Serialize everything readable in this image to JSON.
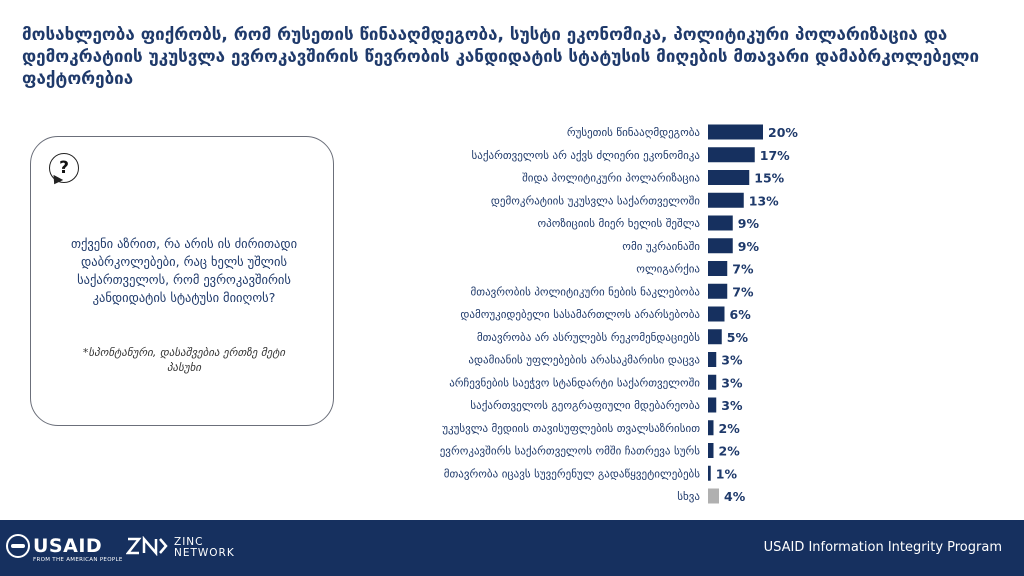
{
  "title": "მოსახლეობა ფიქრობს, რომ რუსეთის წინააღმდეგობა, სუსტი ეკონომიკა, პოლიტიკური პოლარიზაცია და დემოკრატიის უკუსვლა ევროკავშირის წევრობის კანდიდატის სტატუსის მიღების მთავარი დამაბრკოლებელი ფაქტორებია",
  "question_card": {
    "question": "თქვენი აზრით, რა არის ის ძირითადი დაბრკოლებები, რაც ხელს უშლის საქართველოს, რომ ევროკავშირის კანდიდატის სტატუსი მიიღოს?",
    "note": "*სპონტანური, დასაშვებია ერთზე მეტი პასუხი",
    "icon": "question-bubble-icon"
  },
  "chart_data": {
    "type": "bar",
    "orientation": "horizontal",
    "categories": [
      "რუსეთის წინააღმდეგობა",
      "საქართველოს არ აქვს ძლიერი ეკონომიკა",
      "შიდა პოლიტიკური პოლარიზაცია",
      "დემოკრატიის უკუსვლა საქართველოში",
      "ოპოზიციის მიერ ხელის შეშლა",
      "ომი უკრაინაში",
      "ოლიგარქია",
      "მთავრობის პოლიტიკური ნების ნაკლებობა",
      "დამოუკიდებელი სასამართლოს არარსებობა",
      "მთავრობა არ ასრულებს რეკომენდაციებს",
      "ადამიანის უფლებების არასაკმარისი დაცვა",
      "არჩევნების საეჭვო სტანდარტი საქართველოში",
      "საქართველოს გეოგრაფიული მდებარეობა",
      "უკუსვლა მედიის თავისუფლების თვალსაზრისით",
      "ევროკავშირს საქართველოს ომში ჩათრევა სურს",
      "მთავრობა იცავს სუვერენულ გადაწყვეტილებებს",
      "სხვა"
    ],
    "values": [
      20,
      17,
      15,
      13,
      9,
      9,
      7,
      7,
      6,
      5,
      3,
      3,
      3,
      2,
      2,
      1,
      4
    ],
    "value_labels": [
      "20%",
      "17%",
      "15%",
      "13%",
      "9%",
      "9%",
      "7%",
      "7%",
      "6%",
      "5%",
      "3%",
      "3%",
      "3%",
      "2%",
      "2%",
      "1%",
      "4%"
    ],
    "bar_colors": [
      "#16305f",
      "#16305f",
      "#16305f",
      "#16305f",
      "#16305f",
      "#16305f",
      "#16305f",
      "#16305f",
      "#16305f",
      "#16305f",
      "#16305f",
      "#16305f",
      "#16305f",
      "#16305f",
      "#16305f",
      "#16305f",
      "#b0b0b0"
    ],
    "grid": false
  },
  "footer": {
    "usaid_name": "USAID",
    "usaid_tagline": "FROM THE AMERICAN PEOPLE",
    "zinc_line1": "ZINC",
    "zinc_line2": "NETWORK",
    "program": "USAID Information Integrity Program",
    "background_color": "#16305f"
  }
}
